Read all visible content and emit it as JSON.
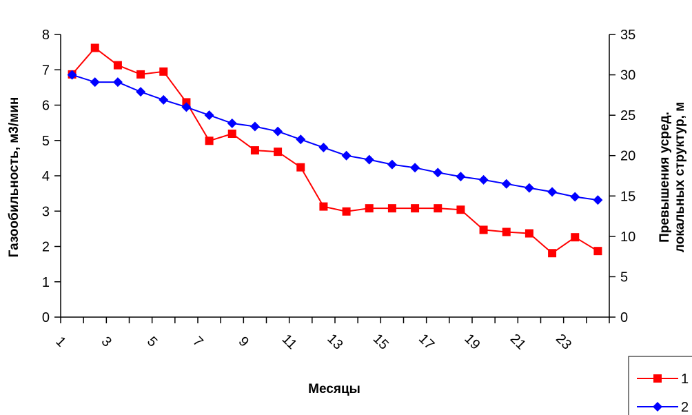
{
  "chart_data": {
    "type": "line",
    "xlabel": "Месяцы",
    "ylabel_left": "Газообильность, м3/мин",
    "ylabel_right_lines": [
      "Превышения усред.",
      "локальных структур, м"
    ],
    "x": [
      1,
      2,
      3,
      4,
      5,
      6,
      7,
      8,
      9,
      10,
      11,
      12,
      13,
      14,
      15,
      16,
      17,
      18,
      19,
      20,
      21,
      22,
      23,
      24
    ],
    "x_tick_labels": [
      "1",
      "3",
      "5",
      "7",
      "9",
      "11",
      "13",
      "15",
      "17",
      "19",
      "21",
      "23"
    ],
    "ylim_left": [
      0,
      8
    ],
    "yticks_left": [
      "0",
      "1",
      "2",
      "3",
      "4",
      "5",
      "6",
      "7",
      "8"
    ],
    "ylim_right": [
      0,
      35
    ],
    "yticks_right": [
      "0",
      "5",
      "10",
      "15",
      "20",
      "25",
      "30",
      "35"
    ],
    "grid": false,
    "legend_position": "bottom-right",
    "series": [
      {
        "name": "1",
        "axis": "left",
        "color": "#ff0000",
        "marker": "square",
        "values": [
          6.87,
          7.62,
          7.13,
          6.87,
          6.95,
          6.08,
          4.99,
          5.19,
          4.72,
          4.68,
          4.24,
          3.13,
          2.99,
          3.08,
          3.08,
          3.08,
          3.08,
          3.04,
          2.47,
          2.41,
          2.37,
          1.81,
          2.26,
          1.87
        ]
      },
      {
        "name": "2",
        "axis": "right",
        "color": "#0000ff",
        "marker": "diamond",
        "values": [
          30.0,
          29.1,
          29.1,
          27.9,
          26.9,
          26.0,
          25.0,
          24.0,
          23.6,
          23.0,
          22.0,
          21.0,
          20.0,
          19.5,
          18.9,
          18.5,
          17.9,
          17.4,
          17.0,
          16.5,
          16.0,
          15.5,
          14.9,
          14.5
        ]
      }
    ]
  }
}
